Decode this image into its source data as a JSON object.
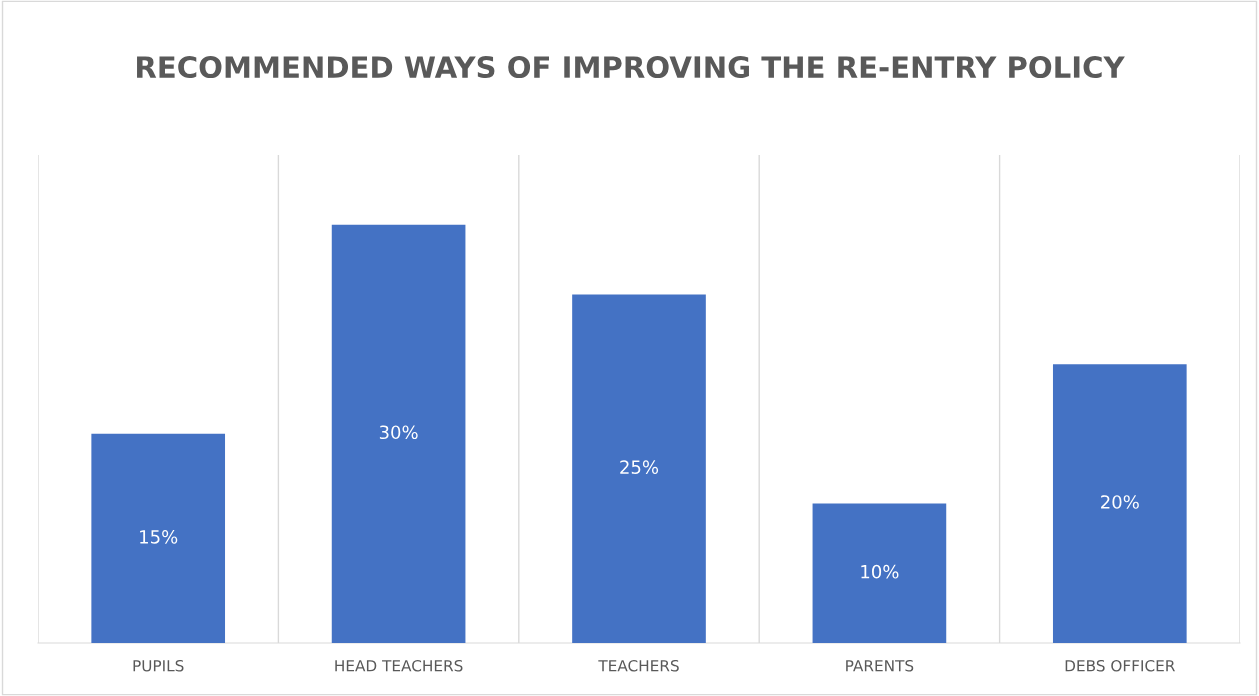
{
  "chart_data": {
    "type": "bar",
    "title": "RECOMMENDED WAYS OF IMPROVING THE RE-ENTRY POLICY",
    "categories": [
      "PUPILS",
      "HEAD TEACHERS",
      "TEACHERS",
      "PARENTS",
      "DEBS OFFICER"
    ],
    "values": [
      15,
      30,
      25,
      10,
      20
    ],
    "value_labels": [
      "15%",
      "30%",
      "25%",
      "10%",
      "20%"
    ],
    "color": "#4472c4",
    "ylim": [
      0,
      35
    ],
    "tick_labels": "x",
    "grid": "x",
    "legend": false
  }
}
